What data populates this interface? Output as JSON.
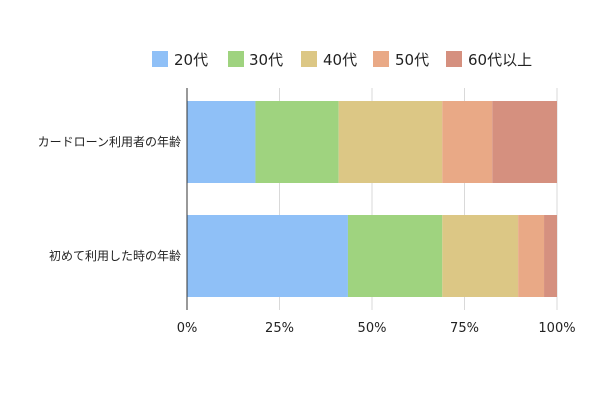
{
  "chart_data": {
    "type": "bar",
    "orientation": "horizontal",
    "stacked": true,
    "percent_stacked": true,
    "categories": [
      "カードローン利用者の年齢",
      "初めて利用した時の年齢"
    ],
    "series": [
      {
        "name": "20代",
        "color": "#8fc0f7",
        "values": [
          18.5,
          43.5
        ]
      },
      {
        "name": "30代",
        "color": "#9fd37f",
        "values": [
          22.5,
          25.5
        ]
      },
      {
        "name": "40代",
        "color": "#dcc785",
        "values": [
          28.0,
          20.5
        ]
      },
      {
        "name": "50代",
        "color": "#e9a986",
        "values": [
          13.5,
          7.0
        ]
      },
      {
        "name": "60代以上",
        "color": "#d5907f",
        "values": [
          17.5,
          3.5
        ]
      }
    ],
    "xlim": [
      0,
      100
    ],
    "x_ticks": [
      0,
      25,
      50,
      75,
      100
    ],
    "x_tick_labels": [
      "0%",
      "25%",
      "50%",
      "75%",
      "100%"
    ],
    "title": "",
    "xlabel": "",
    "ylabel": "",
    "grid": "vertical",
    "legend_position": "top"
  }
}
